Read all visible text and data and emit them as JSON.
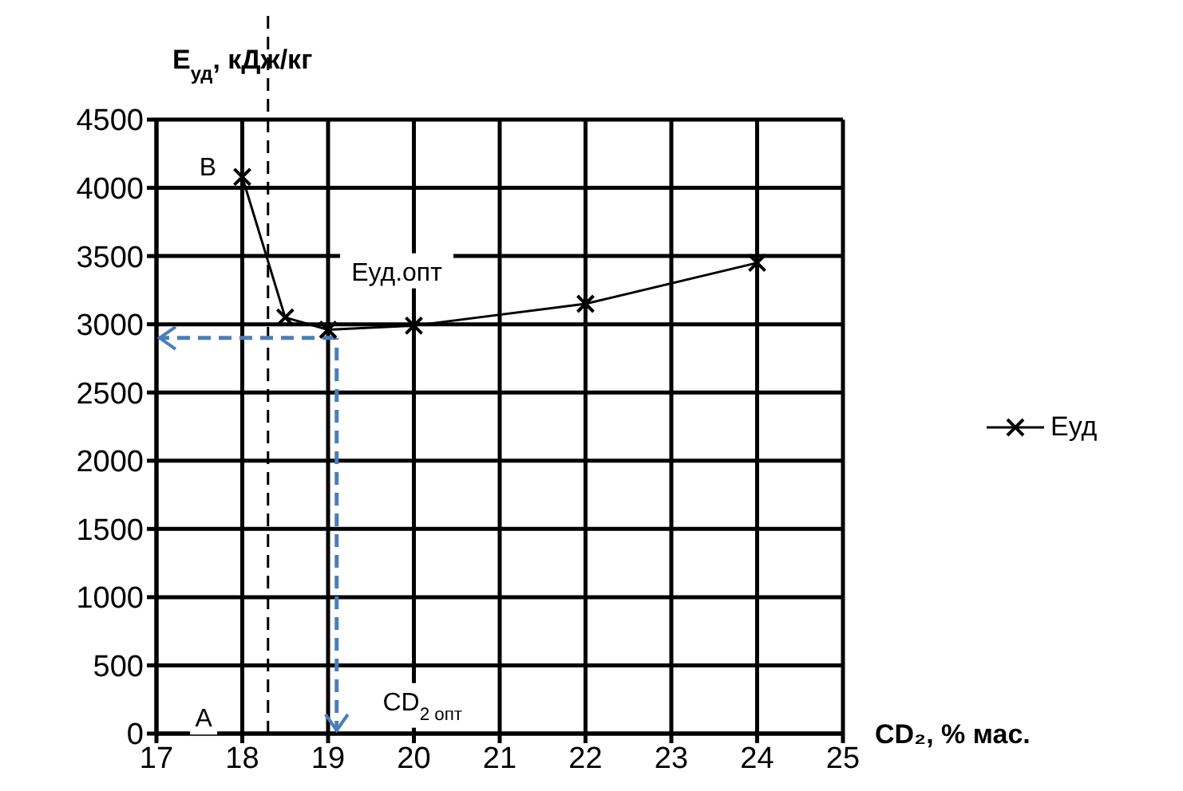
{
  "chart_data": {
    "type": "line",
    "xlabel": "CD₂, % мас.",
    "ylabel": "E$_{уд}$, кДж/кг",
    "xlim": [
      17,
      25
    ],
    "xticks": [
      17,
      18,
      19,
      20,
      21,
      22,
      23,
      24,
      25
    ],
    "ylim": [
      0,
      4500
    ],
    "yticks": [
      0,
      500,
      1000,
      1500,
      2000,
      2500,
      3000,
      3500,
      4000,
      4500
    ],
    "x": [
      18,
      18.5,
      19,
      20,
      22,
      24
    ],
    "series": [
      {
        "name": "Еуд",
        "color": "#000000",
        "values": [
          4080,
          3050,
          2960,
          2990,
          3150,
          3450
        ],
        "marker": "cross",
        "line_style": "solid"
      }
    ],
    "ref_lines": [
      {
        "axis": "x",
        "value": 18.3,
        "color": "#000000",
        "line_style": "dashed"
      },
      {
        "axis": "x",
        "value": 19.1,
        "color": "#4a7ebb",
        "line_style": "dashed"
      },
      {
        "axis": "y",
        "value": 2900,
        "color": "#4a7ebb",
        "line_style": "dashed"
      }
    ],
    "annotations": [
      "B",
      "Еуд.опт",
      "A",
      "CD$_{2 опт}$"
    ],
    "grid": true,
    "legend": "right"
  }
}
